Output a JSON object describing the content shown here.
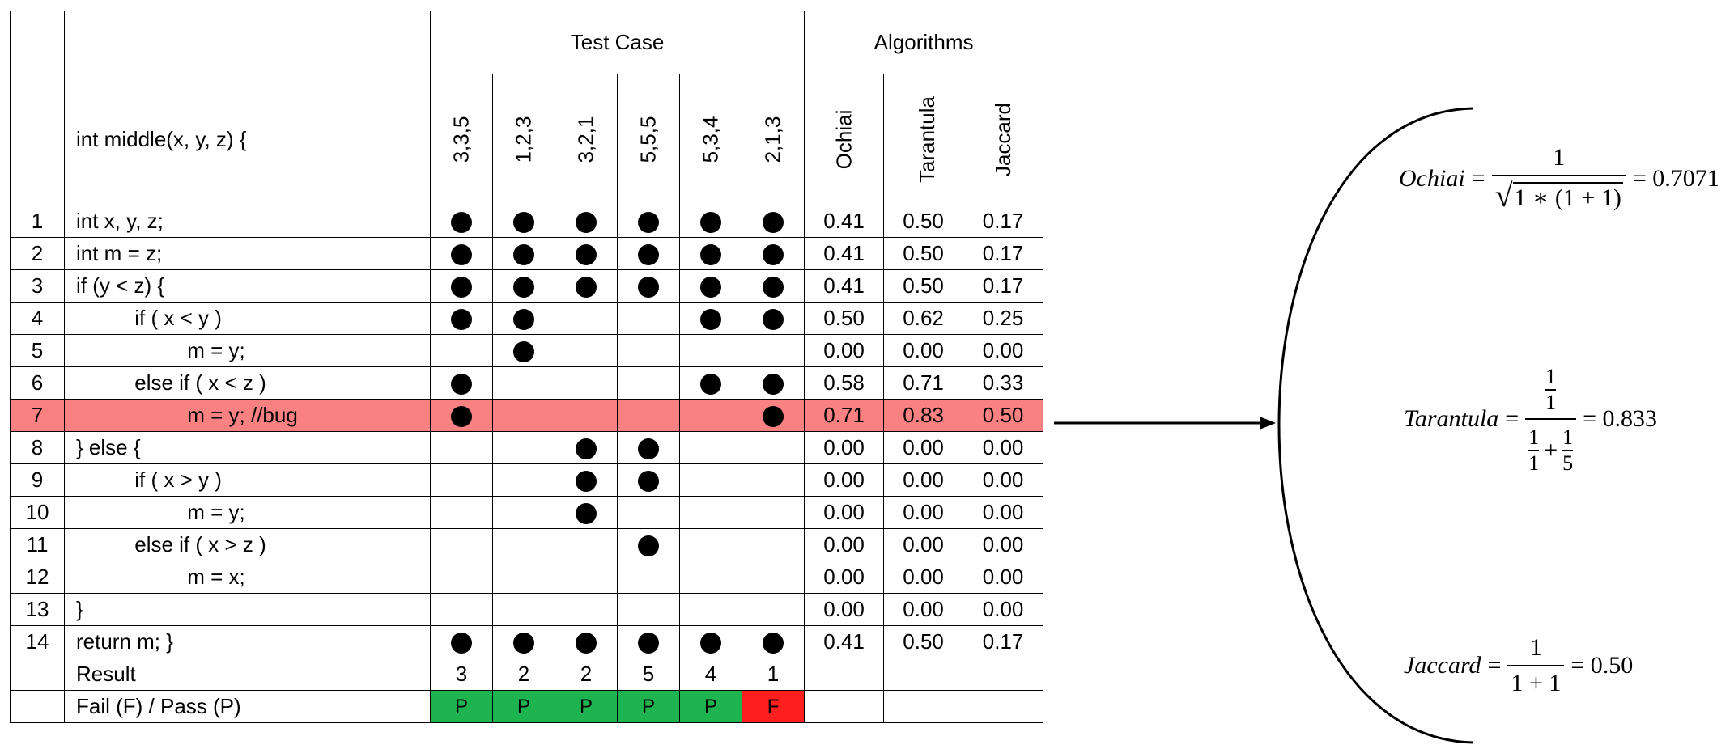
{
  "headers": {
    "test_case": "Test Case",
    "algorithms": "Algorithms",
    "function_signature": "int middle(x, y, z) {",
    "test_inputs": [
      "3,3,5",
      "1,2,3",
      "3,2,1",
      "5,5,5",
      "5,3,4",
      "2,1,3"
    ],
    "algorithm_names": [
      "Ochiai",
      "Tarantula",
      "Jaccard"
    ]
  },
  "rows": [
    {
      "num": "1",
      "code": "int x, y, z;",
      "cov": [
        1,
        1,
        1,
        1,
        1,
        1
      ],
      "scores": [
        "0.41",
        "0.50",
        "0.17"
      ]
    },
    {
      "num": "2",
      "code": "int m = z;",
      "cov": [
        1,
        1,
        1,
        1,
        1,
        1
      ],
      "scores": [
        "0.41",
        "0.50",
        "0.17"
      ]
    },
    {
      "num": "3",
      "code": "if (y < z) {",
      "cov": [
        1,
        1,
        1,
        1,
        1,
        1
      ],
      "scores": [
        "0.41",
        "0.50",
        "0.17"
      ]
    },
    {
      "num": "4",
      "code": "          if ( x < y )",
      "cov": [
        1,
        1,
        0,
        0,
        1,
        1
      ],
      "scores": [
        "0.50",
        "0.62",
        "0.25"
      ]
    },
    {
      "num": "5",
      "code": "                   m = y;",
      "cov": [
        0,
        1,
        0,
        0,
        0,
        0
      ],
      "scores": [
        "0.00",
        "0.00",
        "0.00"
      ]
    },
    {
      "num": "6",
      "code": "          else if ( x < z )",
      "cov": [
        1,
        0,
        0,
        0,
        1,
        1
      ],
      "scores": [
        "0.58",
        "0.71",
        "0.33"
      ]
    },
    {
      "num": "7",
      "code": "                   m = y; //bug",
      "cov": [
        1,
        0,
        0,
        0,
        0,
        1
      ],
      "scores": [
        "0.71",
        "0.83",
        "0.50"
      ],
      "bug": true
    },
    {
      "num": "8",
      "code": "} else {",
      "cov": [
        0,
        0,
        1,
        1,
        0,
        0
      ],
      "scores": [
        "0.00",
        "0.00",
        "0.00"
      ]
    },
    {
      "num": "9",
      "code": "          if ( x > y )",
      "cov": [
        0,
        0,
        1,
        1,
        0,
        0
      ],
      "scores": [
        "0.00",
        "0.00",
        "0.00"
      ]
    },
    {
      "num": "10",
      "code": "                   m = y;",
      "cov": [
        0,
        0,
        1,
        0,
        0,
        0
      ],
      "scores": [
        "0.00",
        "0.00",
        "0.00"
      ]
    },
    {
      "num": "11",
      "code": "          else if ( x > z )",
      "cov": [
        0,
        0,
        0,
        1,
        0,
        0
      ],
      "scores": [
        "0.00",
        "0.00",
        "0.00"
      ]
    },
    {
      "num": "12",
      "code": "                   m = x;",
      "cov": [
        0,
        0,
        0,
        0,
        0,
        0
      ],
      "scores": [
        "0.00",
        "0.00",
        "0.00"
      ]
    },
    {
      "num": "13",
      "code": "}",
      "cov": [
        0,
        0,
        0,
        0,
        0,
        0
      ],
      "scores": [
        "0.00",
        "0.00",
        "0.00"
      ]
    },
    {
      "num": "14",
      "code": "return m; }",
      "cov": [
        1,
        1,
        1,
        1,
        1,
        1
      ],
      "scores": [
        "0.41",
        "0.50",
        "0.17"
      ]
    }
  ],
  "result_row": {
    "label": "Result",
    "values": [
      "3",
      "2",
      "2",
      "5",
      "4",
      "1"
    ]
  },
  "passfail_row": {
    "label": "Fail (F) / Pass (P)",
    "values": [
      "P",
      "P",
      "P",
      "P",
      "P",
      "F"
    ]
  },
  "colors": {
    "bug_row": "#f98181",
    "pass": "#1db34f",
    "fail": "#ff1f1f"
  },
  "formulas": {
    "ochiai": {
      "name": "Ochiai",
      "numerator": "1",
      "radicand": "1 ∗ (1 + 1)",
      "result": "0.7071"
    },
    "tarantula": {
      "name": "Tarantula",
      "top_num": "1",
      "top_den": "1",
      "bot_a_num": "1",
      "bot_a_den": "1",
      "bot_b_num": "1",
      "bot_b_den": "5",
      "result": "0.833"
    },
    "jaccard": {
      "name": "Jaccard",
      "numerator": "1",
      "denominator": "1 + 1",
      "result": "0.50"
    }
  }
}
